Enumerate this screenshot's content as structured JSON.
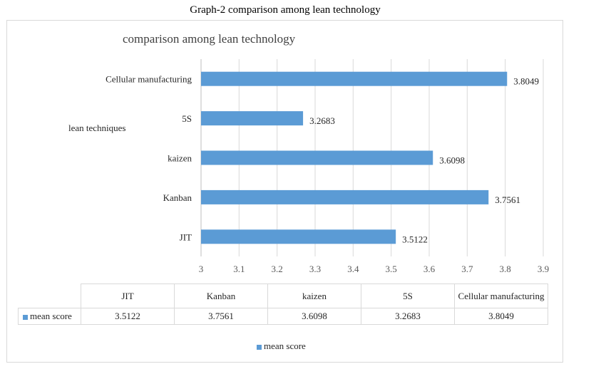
{
  "caption": "Graph-2 comparison among lean technology",
  "chart_data": {
    "type": "bar",
    "orientation": "horizontal",
    "title": "comparison among lean technology",
    "ylabel": "lean techniques",
    "xlabel": "",
    "categories": [
      "JIT",
      "Kanban",
      "kaizen",
      "5S",
      "Cellular manufacturing"
    ],
    "series": [
      {
        "name": "mean score",
        "values": [
          3.5122,
          3.7561,
          3.6098,
          3.2683,
          3.8049
        ],
        "color": "#5b9bd5"
      }
    ],
    "data_labels": [
      "3.5122",
      "3.7561",
      "3.6098",
      "3.2683",
      "3.8049"
    ],
    "xlim": [
      3,
      3.9
    ],
    "x_ticks": [
      "3",
      "3.1",
      "3.2",
      "3.3",
      "3.4",
      "3.5",
      "3.6",
      "3.7",
      "3.8",
      "3.9"
    ],
    "grid": "vertical",
    "legend": "bottom"
  },
  "table": {
    "headers": [
      "JIT",
      "Kanban",
      "kaizen",
      "5S",
      "Cellular manufacturing"
    ],
    "series_name": "mean score",
    "values": [
      "3.5122",
      "3.7561",
      "3.6098",
      "3.2683",
      "3.8049"
    ]
  },
  "legend": {
    "label": "mean score"
  }
}
